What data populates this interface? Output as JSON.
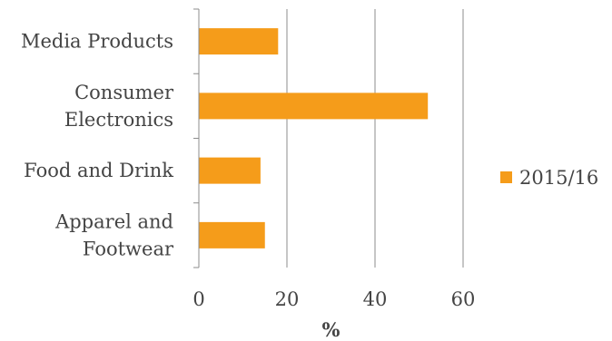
{
  "chart_data": {
    "type": "bar",
    "orientation": "horizontal",
    "categories": [
      [
        "Media Products"
      ],
      [
        "Consumer",
        "Electronics"
      ],
      [
        "Food and Drink"
      ],
      [
        "Apparel and",
        "Footwear"
      ]
    ],
    "series": [
      {
        "name": "2015/16",
        "values": [
          18,
          52,
          14,
          15
        ],
        "color": "#F59C1A"
      }
    ],
    "xlabel": "%",
    "xlim": [
      0,
      60
    ],
    "xticks": [
      0,
      20,
      40,
      60
    ],
    "grid": true,
    "legend_position": "right"
  }
}
